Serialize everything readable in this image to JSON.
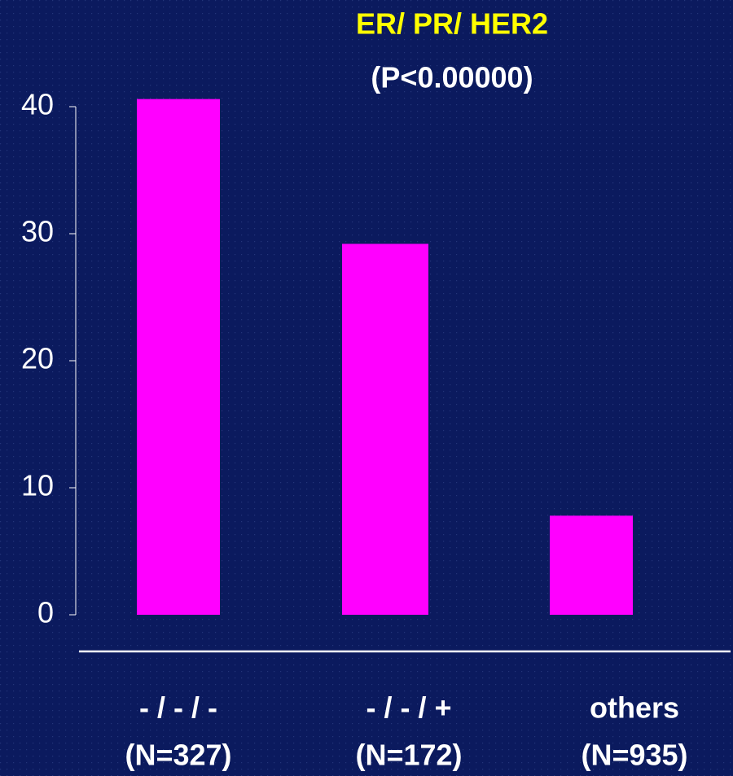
{
  "chart_data": {
    "type": "bar",
    "title": "ER/ PR/ HER2",
    "subtitle": "(P<0.00000)",
    "title_color": "#ffff00",
    "categories": [
      [
        "- / - / -",
        "(N=327)"
      ],
      [
        "- / - / +",
        "(N=172)"
      ],
      [
        "others",
        "(N=935)"
      ]
    ],
    "values": [
      40.6,
      29.2,
      7.8
    ],
    "color": "#ff00ff",
    "ylim": [
      0,
      40
    ],
    "yticks": [
      0,
      10,
      20,
      30,
      40
    ]
  }
}
